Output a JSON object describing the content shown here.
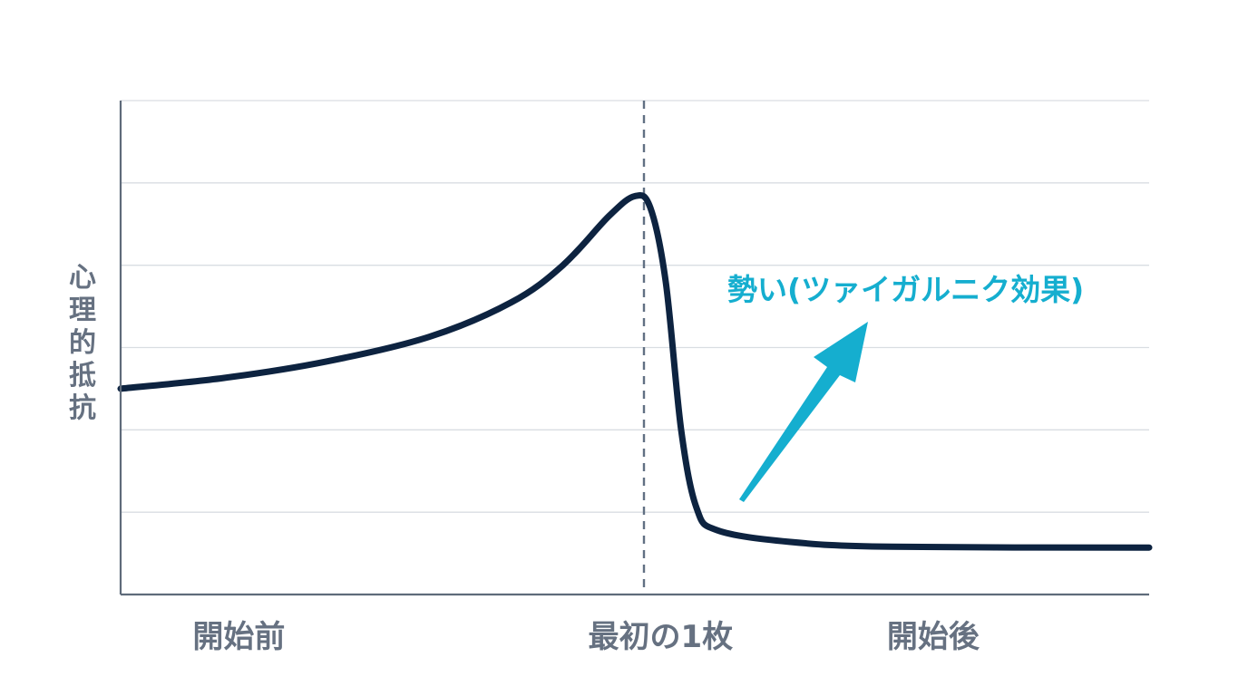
{
  "chart_data": {
    "type": "line",
    "ylabel": "心理的抵抗",
    "xlabel": "",
    "x_ticks": [
      "開始前",
      "最初の1枚",
      "開始後"
    ],
    "x_domain": [
      0,
      10
    ],
    "ylim": [
      0,
      6
    ],
    "grid": true,
    "series": [
      {
        "color": "#0d2340",
        "points": [
          [
            0.0,
            2.5
          ],
          [
            1.0,
            2.63
          ],
          [
            2.0,
            2.83
          ],
          [
            3.0,
            3.13
          ],
          [
            3.8,
            3.55
          ],
          [
            4.3,
            4.0
          ],
          [
            4.75,
            4.6
          ],
          [
            5.0,
            4.84
          ],
          [
            5.15,
            4.7
          ],
          [
            5.3,
            3.8
          ],
          [
            5.45,
            2.0
          ],
          [
            5.6,
            1.05
          ],
          [
            5.8,
            0.78
          ],
          [
            6.5,
            0.64
          ],
          [
            7.5,
            0.58
          ],
          [
            10.0,
            0.57
          ]
        ]
      }
    ],
    "vertical_marker_x": 5.0,
    "annotation": {
      "text": "勢い(ツァイガルニク効果)",
      "color": "#15aecf"
    }
  }
}
